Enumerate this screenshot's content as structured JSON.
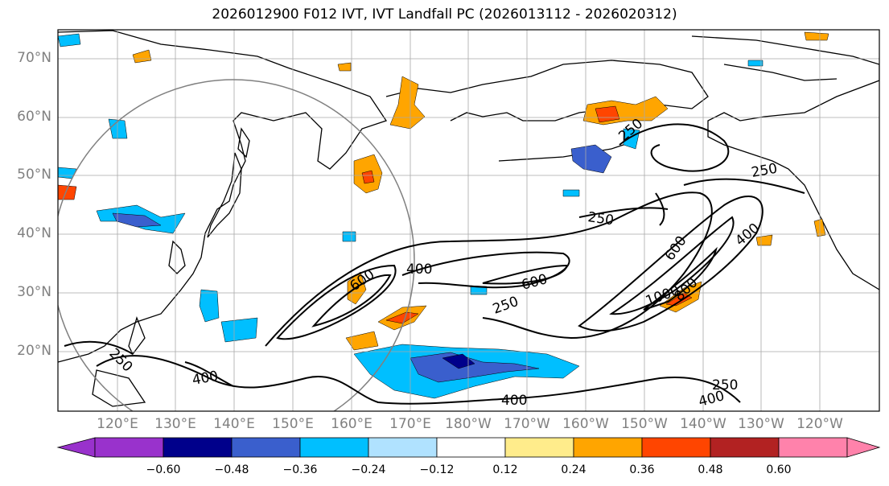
{
  "title": "2026012900 F012 IVT, IVT Landfall PC (2026013112 - 2026020312)",
  "map": {
    "lat_labels": [
      "70°N",
      "60°N",
      "50°N",
      "40°N",
      "30°N",
      "20°N"
    ],
    "lon_labels": [
      "120°E",
      "130°E",
      "140°E",
      "150°E",
      "160°E",
      "170°E",
      "180°W",
      "170°W",
      "160°W",
      "150°W",
      "140°W",
      "130°W",
      "120°W"
    ],
    "contour_labels": [
      {
        "text": "400"
      },
      {
        "text": "600"
      },
      {
        "text": "250"
      },
      {
        "text": "600"
      },
      {
        "text": "400"
      },
      {
        "text": "250"
      },
      {
        "text": "600"
      },
      {
        "text": "800"
      },
      {
        "text": "1000"
      },
      {
        "text": "250"
      },
      {
        "text": "250"
      },
      {
        "text": "400"
      },
      {
        "text": "250"
      },
      {
        "text": "400"
      },
      {
        "text": "400"
      },
      {
        "text": "250"
      },
      {
        "text": "250"
      }
    ],
    "grid": true,
    "colors": {
      "land_outline": "#000000",
      "grid": "#a9a9a9",
      "contour": "#000000",
      "circle": "#808080"
    }
  },
  "colorbar": {
    "colors": [
      "#9932cc",
      "#00008b",
      "#3a5fcd",
      "#00bfff",
      "#b0e2ff",
      "#ffffff",
      "#ffec8b",
      "#ffa500",
      "#ff4500",
      "#b22222",
      "#ff82ab"
    ],
    "ticks": [
      "−0.60",
      "−0.48",
      "−0.36",
      "−0.24",
      "−0.12",
      "0.12",
      "0.24",
      "0.36",
      "0.48",
      "0.60"
    ]
  }
}
